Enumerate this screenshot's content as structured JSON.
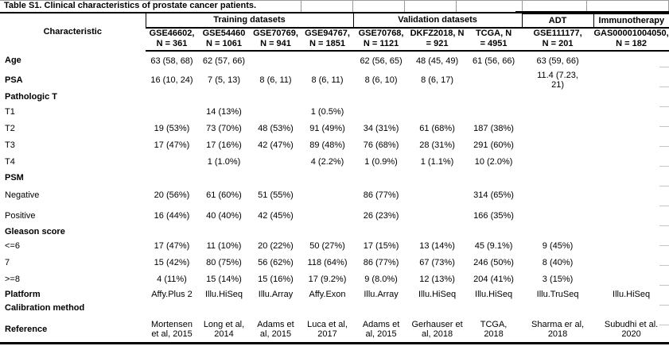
{
  "title": "Table S1. Clinical characteristics of prostate cancer patients.",
  "table": {
    "characteristic_header": "Characteristic",
    "groups": [
      {
        "label": "Training datasets",
        "span": 4,
        "thick_top": false
      },
      {
        "label": "Validation datasets",
        "span": 3,
        "thick_top": false
      },
      {
        "label": "ADT",
        "span": 1,
        "thick_top": true
      },
      {
        "label": "Immunotherapy",
        "span": 1,
        "thick_top": true
      }
    ],
    "columns": [
      {
        "header": "GSE46602,\nN = 361"
      },
      {
        "header": "GSE54460\nN = 1061"
      },
      {
        "header": "GSE70769,\nN = 941"
      },
      {
        "header": "GSE94767,\nN = 1851"
      },
      {
        "header": "GSE70768,\nN = 1121"
      },
      {
        "header": "DKFZ2018, N\n= 921"
      },
      {
        "header": "TCGA, N\n= 4951"
      },
      {
        "header": "GSE111177,\nN = 201"
      },
      {
        "header": "GAS00001004050,\nN = 182"
      }
    ],
    "rows": [
      {
        "label": "Age",
        "bold": true,
        "values": [
          "63 (58, 68)",
          "62 (57, 66)",
          "",
          "",
          "62 (56, 65)",
          "48 (45, 49)",
          "61 (56, 66)",
          "63 (59, 66)",
          ""
        ]
      },
      {
        "label": "PSA",
        "bold": true,
        "values": [
          "16 (10, 24)",
          "7 (5, 13)",
          "8 (6, 11)",
          "8 (6, 11)",
          "8 (6, 10)",
          "8 (6, 17)",
          "",
          "11.4 (7.23,\n21)",
          ""
        ]
      },
      {
        "label": "Pathologic T",
        "bold": true,
        "values": [
          "",
          "",
          "",
          "",
          "",
          "",
          "",
          "",
          ""
        ]
      },
      {
        "label": "T1",
        "bold": false,
        "values": [
          "",
          "14 (13%)",
          "",
          "1 (0.5%)",
          "",
          "",
          "",
          "",
          ""
        ]
      },
      {
        "label": "T2",
        "bold": false,
        "values": [
          "19 (53%)",
          "73 (70%)",
          "48 (53%)",
          "91 (49%)",
          "34 (31%)",
          "61 (68%)",
          "187 (38%)",
          "",
          ""
        ]
      },
      {
        "label": "T3",
        "bold": false,
        "values": [
          "17 (47%)",
          "17 (16%)",
          "42 (47%)",
          "89 (48%)",
          "76 (68%)",
          "28 (31%)",
          "291 (60%)",
          "",
          ""
        ]
      },
      {
        "label": "T4",
        "bold": false,
        "values": [
          "",
          "1 (1.0%)",
          "",
          "4 (2.2%)",
          "1 (0.9%)",
          "1 (1.1%)",
          "10 (2.0%)",
          "",
          ""
        ]
      },
      {
        "label": "PSM",
        "bold": true,
        "values": [
          "",
          "",
          "",
          "",
          "",
          "",
          "",
          "",
          ""
        ]
      },
      {
        "label": "Negative",
        "bold": false,
        "values": [
          "20 (56%)",
          "61 (60%)",
          "51 (55%)",
          "",
          "86 (77%)",
          "",
          "314 (65%)",
          "",
          ""
        ]
      },
      {
        "label": "Positive",
        "bold": false,
        "values": [
          "16 (44%)",
          "40 (40%)",
          "42 (45%)",
          "",
          "26 (23%)",
          "",
          "166 (35%)",
          "",
          ""
        ]
      },
      {
        "label": "Gleason score",
        "bold": true,
        "values": [
          "",
          "",
          "",
          "",
          "",
          "",
          "",
          "",
          ""
        ]
      },
      {
        "label": "<=6",
        "bold": false,
        "values": [
          "17 (47%)",
          "11 (10%)",
          "20 (22%)",
          "50 (27%)",
          "17 (15%)",
          "13 (14%)",
          "45 (9.1%)",
          "9 (45%)",
          ""
        ]
      },
      {
        "label": "7",
        "bold": false,
        "values": [
          "15 (42%)",
          "80 (75%)",
          "56 (62%)",
          "118 (64%)",
          "86 (77%)",
          "67 (73%)",
          "246 (50%)",
          "8 (40%)",
          ""
        ]
      },
      {
        "label": ">=8",
        "bold": false,
        "values": [
          "4 (11%)",
          "15 (14%)",
          "15 (16%)",
          "17 (9.2%)",
          "9 (8.0%)",
          "12 (13%)",
          "204 (41%)",
          "3 (15%)",
          ""
        ]
      },
      {
        "label": "Platform",
        "bold": true,
        "values": [
          "Affy.Plus 2",
          "Illu.HiSeq",
          "Illu.Array",
          "Affy.Exon",
          "Illu.Array",
          "Illu.HiSeq",
          "Illu.HiSeq",
          "Illu.TruSeq",
          "Illu.HiSeq"
        ]
      },
      {
        "label": "Calibration method",
        "bold": true,
        "values": [
          "",
          "",
          "",
          "",
          "",
          "",
          "",
          "",
          ""
        ]
      },
      {
        "label": "Reference",
        "bold": true,
        "values": [
          "Mortensen\net al, 2015",
          "Long et al,\n2014",
          "Adams et\nal, 2015",
          "Luca et al,\n2017",
          "Adams et\nal, 2015",
          "Gerhauser et\nal, 2018",
          "TCGA,\n2018",
          "Sharma er al,\n2018",
          "Subudhi et al.\n2020"
        ]
      }
    ]
  }
}
